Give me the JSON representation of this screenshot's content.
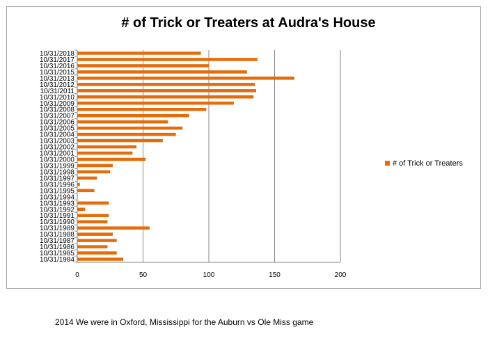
{
  "chart_data": {
    "type": "bar",
    "orientation": "horizontal",
    "title": "# of Trick or Treaters at Audra's House",
    "xlabel": "",
    "ylabel": "",
    "xlim": [
      0,
      200
    ],
    "x_ticks": [
      0,
      50,
      100,
      150,
      200
    ],
    "grid": "vertical",
    "legend_position": "right",
    "bar_color": "#E46C0A",
    "categories": [
      "10/31/1984",
      "10/31/1985",
      "10/31/1986",
      "10/31/1987",
      "10/31/1988",
      "10/31/1989",
      "10/31/1990",
      "10/31/1991",
      "10/31/1992",
      "10/31/1993",
      "10/31/1994",
      "10/31/1995",
      "10/31/1996",
      "10/31/1997",
      "10/31/1998",
      "10/31/1999",
      "10/31/2000",
      "10/31/2001",
      "10/31/2002",
      "10/31/2003",
      "10/31/2004",
      "10/31/2005",
      "10/31/2006",
      "10/31/2007",
      "10/31/2008",
      "10/31/2009",
      "10/31/2010",
      "10/31/2011",
      "10/31/2012",
      "10/31/2013",
      "10/31/2015",
      "10/31/2016",
      "10/31/2017",
      "10/31/2018"
    ],
    "series": [
      {
        "name": "# of Trick or Treaters",
        "values": [
          35,
          30,
          23,
          30,
          27,
          55,
          23,
          24,
          6,
          24,
          0,
          13,
          2,
          15,
          25,
          27,
          52,
          42,
          45,
          65,
          75,
          80,
          69,
          85,
          98,
          119,
          134,
          136,
          135,
          165,
          129,
          100,
          137,
          94
        ]
      }
    ]
  },
  "footnote": "2014 We were in Oxford, Mississippi for the Auburn vs Ole Miss game"
}
